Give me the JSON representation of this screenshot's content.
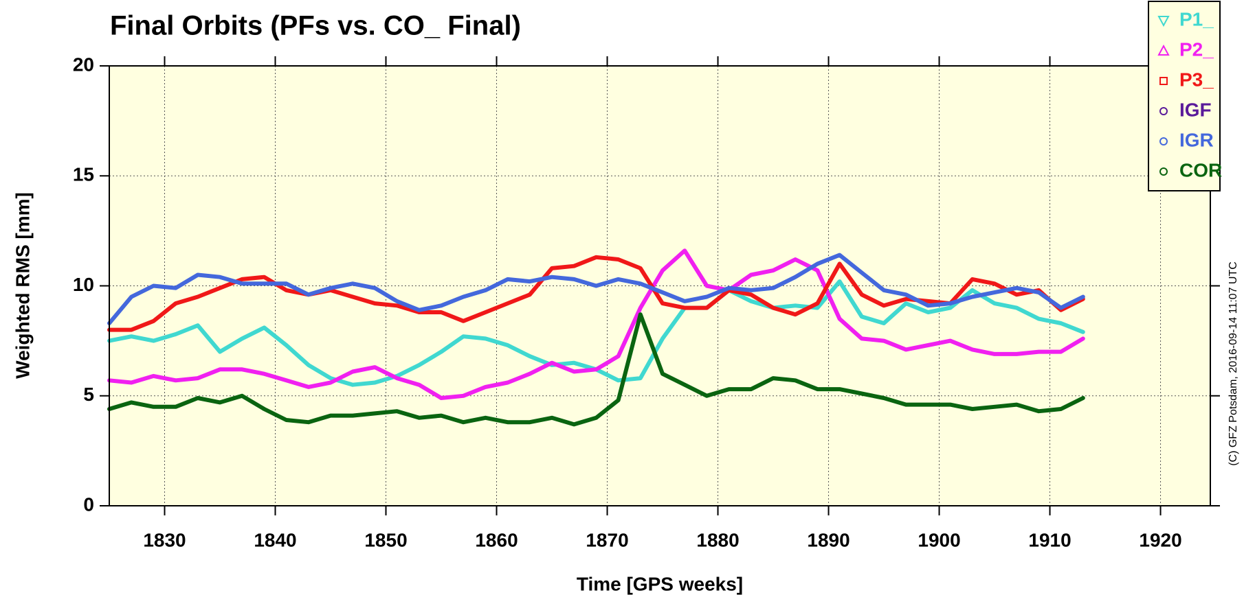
{
  "chart_data": {
    "type": "line",
    "title": "Final Orbits (PFs vs. CO_ Final)",
    "x_label": "Time [GPS weeks]",
    "y_label": "Weighted RMS [mm]",
    "side_note": "(C) GFZ Potsdam, 2016-09-14 11:07 UTC",
    "x": [
      1825,
      1827,
      1829,
      1831,
      1833,
      1835,
      1837,
      1839,
      1841,
      1843,
      1845,
      1847,
      1849,
      1851,
      1853,
      1855,
      1857,
      1859,
      1861,
      1863,
      1865,
      1867,
      1869,
      1871,
      1873,
      1875,
      1877,
      1879,
      1881,
      1883,
      1885,
      1887,
      1889,
      1891,
      1893,
      1895,
      1897,
      1899,
      1901,
      1903,
      1905,
      1907,
      1909,
      1911,
      1913
    ],
    "series": [
      {
        "name": "P1_",
        "color": "#40d8d0",
        "marker": "triangle-down",
        "values": [
          7.5,
          7.7,
          7.5,
          7.8,
          8.2,
          7.0,
          7.6,
          8.1,
          7.3,
          6.4,
          5.8,
          5.5,
          5.6,
          5.9,
          6.4,
          7.0,
          7.7,
          7.6,
          7.3,
          6.8,
          6.4,
          6.5,
          6.2,
          5.7,
          5.8,
          7.6,
          9.0,
          9.0,
          9.8,
          9.3,
          9.0,
          9.1,
          9.0,
          10.2,
          8.6,
          8.3,
          9.2,
          8.8,
          9.0,
          9.8,
          9.2,
          9.0,
          8.5,
          8.3,
          7.9
        ]
      },
      {
        "name": "P2_",
        "color": "#f020f0",
        "marker": "triangle-up",
        "values": [
          5.7,
          5.6,
          5.9,
          5.7,
          5.8,
          6.2,
          6.2,
          6.0,
          5.7,
          5.4,
          5.6,
          6.1,
          6.3,
          5.8,
          5.5,
          4.9,
          5.0,
          5.4,
          5.6,
          6.0,
          6.5,
          6.1,
          6.2,
          6.8,
          9.0,
          10.7,
          11.6,
          10.0,
          9.8,
          10.5,
          10.7,
          11.2,
          10.7,
          8.5,
          7.6,
          7.5,
          7.1,
          7.3,
          7.5,
          7.1,
          6.9,
          6.9,
          7.0,
          7.0,
          7.6
        ]
      },
      {
        "name": "P3_",
        "color": "#f01818",
        "marker": "square",
        "values": [
          8.0,
          8.0,
          8.4,
          9.2,
          9.5,
          9.9,
          10.3,
          10.4,
          9.8,
          9.6,
          9.8,
          9.5,
          9.2,
          9.1,
          8.8,
          8.8,
          8.4,
          8.8,
          9.2,
          9.6,
          10.8,
          10.9,
          11.3,
          11.2,
          10.8,
          9.2,
          9.0,
          9.0,
          9.8,
          9.6,
          9.0,
          8.7,
          9.2,
          11.0,
          9.6,
          9.1,
          9.4,
          9.3,
          9.2,
          10.3,
          10.1,
          9.6,
          9.8,
          8.9,
          9.4
        ]
      },
      {
        "name": "IGF",
        "color": "#5a1a9a",
        "marker": "circle",
        "values": [
          null,
          null,
          null,
          null,
          null,
          null,
          null,
          null,
          null,
          null,
          null,
          null,
          null,
          null,
          null,
          null,
          null,
          null,
          null,
          null,
          null,
          null,
          null,
          null,
          null,
          null,
          null,
          null,
          null,
          null,
          null,
          null,
          null,
          null,
          null,
          null,
          null,
          null,
          null,
          null,
          null,
          null,
          null,
          null,
          null
        ]
      },
      {
        "name": "IGR",
        "color": "#4468dc",
        "marker": "circle",
        "values": [
          8.3,
          9.5,
          10.0,
          9.9,
          10.5,
          10.4,
          10.1,
          10.1,
          10.1,
          9.6,
          9.9,
          10.1,
          9.9,
          9.3,
          8.9,
          9.1,
          9.5,
          9.8,
          10.3,
          10.2,
          10.4,
          10.3,
          10.0,
          10.3,
          10.1,
          9.7,
          9.3,
          9.5,
          9.9,
          9.8,
          9.9,
          10.4,
          11.0,
          11.4,
          10.6,
          9.8,
          9.6,
          9.1,
          9.2,
          9.5,
          9.7,
          9.9,
          9.7,
          9.0,
          9.5
        ]
      },
      {
        "name": "COR",
        "color": "#0a6410",
        "marker": "circle",
        "values": [
          4.4,
          4.7,
          4.5,
          4.5,
          4.9,
          4.7,
          5.0,
          4.4,
          3.9,
          3.8,
          4.1,
          4.1,
          4.2,
          4.3,
          4.0,
          4.1,
          3.8,
          4.0,
          3.8,
          3.8,
          4.0,
          3.7,
          4.0,
          4.8,
          8.7,
          6.0,
          5.5,
          5.0,
          5.3,
          5.3,
          5.8,
          5.7,
          5.3,
          5.3,
          5.1,
          4.9,
          4.6,
          4.6,
          4.6,
          4.4,
          4.5,
          4.6,
          4.3,
          4.4,
          4.9
        ]
      }
    ],
    "xlim": [
      1825,
      1924.5
    ],
    "ylim": [
      0,
      20
    ],
    "xticks": [
      1830,
      1840,
      1850,
      1860,
      1870,
      1880,
      1890,
      1900,
      1910,
      1920
    ],
    "yticks": [
      0,
      5,
      10,
      15,
      20
    ],
    "grid": true,
    "legend": "top-right",
    "plot_background": "#ffffe0"
  }
}
